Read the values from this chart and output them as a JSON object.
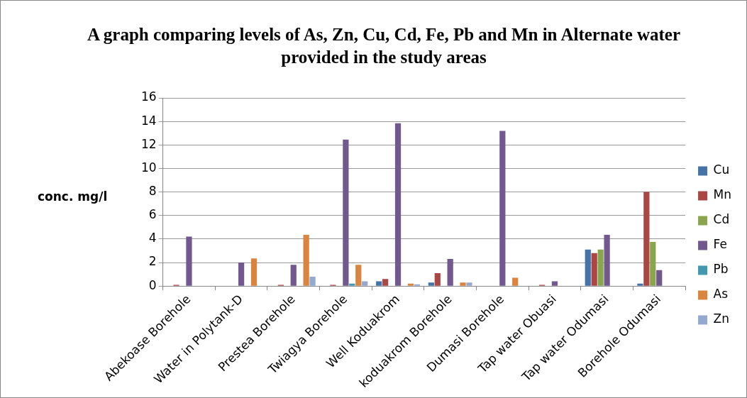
{
  "chart_data": {
    "type": "bar",
    "title": "A graph comparing levels of As, Zn, Cu, Cd, Fe, Pb and Mn in Alternate water provided in the study areas",
    "ylabel": "conc. mg/l",
    "categories": [
      "Abekoase Borehole",
      "Water in Polytank-D",
      "Prestea Borehole",
      "Twiagya Borehole",
      "Well Koduakrom",
      "koduakrom Borehole",
      "Dumasi Borehole",
      "Tap water Obuasi",
      "Tap water Odumasi",
      "Borehole Odumasi"
    ],
    "series": [
      {
        "name": "Cu",
        "color": "#4572a7",
        "values": [
          null,
          null,
          null,
          null,
          0.4,
          0.3,
          null,
          null,
          3.1,
          0.2
        ]
      },
      {
        "name": "Mn",
        "color": "#aa4643",
        "values": [
          0.1,
          null,
          0.1,
          0.1,
          0.6,
          1.1,
          null,
          0.1,
          2.8,
          8.0
        ]
      },
      {
        "name": "Cd",
        "color": "#89a54e",
        "values": [
          null,
          null,
          null,
          null,
          null,
          null,
          null,
          null,
          3.1,
          3.75
        ]
      },
      {
        "name": "Fe",
        "color": "#71588f",
        "values": [
          4.2,
          2.0,
          1.8,
          12.45,
          13.85,
          2.3,
          13.2,
          0.4,
          4.35,
          1.35
        ]
      },
      {
        "name": "Pb",
        "color": "#4198af",
        "values": [
          null,
          null,
          null,
          0.2,
          null,
          null,
          null,
          null,
          null,
          null
        ]
      },
      {
        "name": "As",
        "color": "#db843d",
        "values": [
          null,
          2.35,
          4.35,
          1.8,
          0.2,
          0.3,
          0.7,
          null,
          null,
          null
        ]
      },
      {
        "name": "Zn",
        "color": "#93a9cf",
        "values": [
          null,
          null,
          0.8,
          0.4,
          0.15,
          0.3,
          null,
          null,
          null,
          null
        ]
      }
    ],
    "ylim": [
      0,
      16
    ],
    "yticks": [
      0,
      2,
      4,
      6,
      8,
      10,
      12,
      14,
      16
    ],
    "grid": "y",
    "legend": "right"
  }
}
